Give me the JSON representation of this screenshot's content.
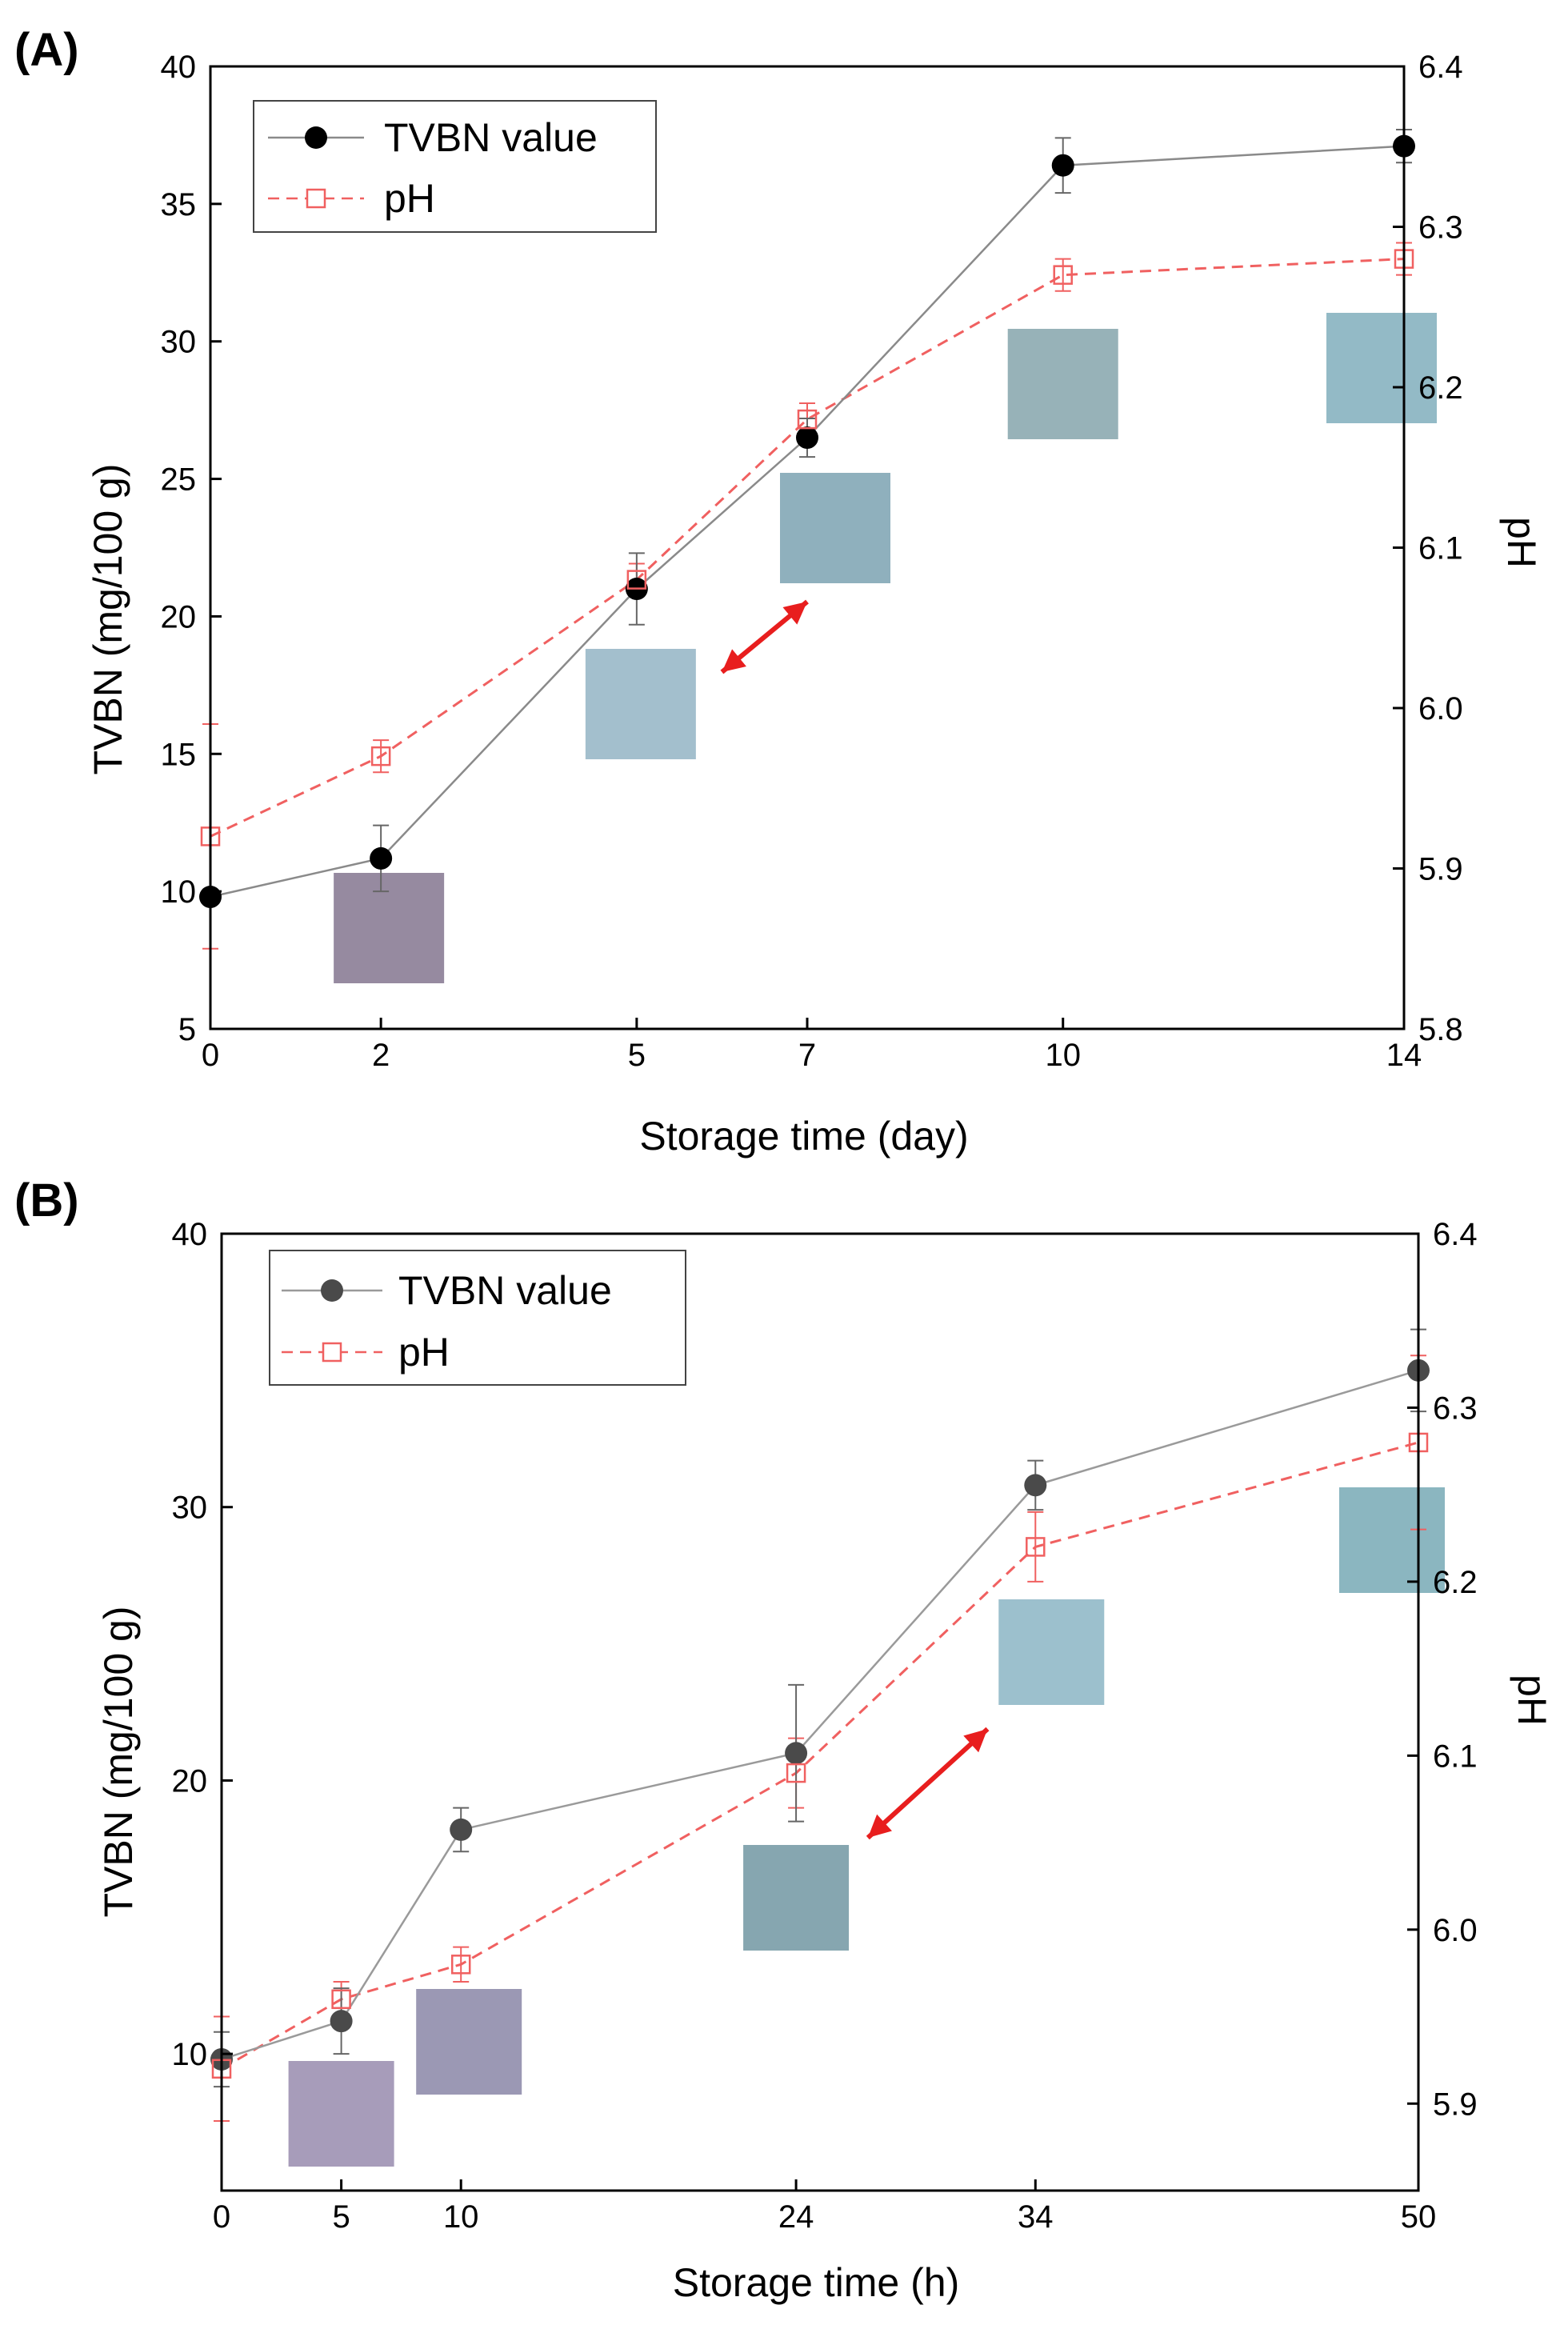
{
  "colors": {
    "tvbn_line_A": "#8a8a8a",
    "tvbn_marker_A": "#000000",
    "tvbn_line_B": "#9a9a9a",
    "tvbn_marker_B": "#4a4a4a",
    "ph": "#f06060",
    "arrow": "#e81e1e",
    "axis": "#000000"
  },
  "chart_data": [
    {
      "panel_label": "(A)",
      "type": "line",
      "title": "",
      "xlabel": "Storage time (day)",
      "ylabel": "TVBN (mg/100 g)",
      "y2label": "pH",
      "xlim": [
        0,
        14
      ],
      "ylim": [
        5,
        40
      ],
      "y2lim": [
        5.8,
        6.4
      ],
      "x_ticks": [
        0,
        2,
        5,
        7,
        10,
        14
      ],
      "x_tick_labels": [
        "0",
        "2",
        "5",
        "7",
        "10",
        "14"
      ],
      "y_ticks": [
        5,
        10,
        15,
        20,
        25,
        30,
        35,
        40
      ],
      "y_tick_labels": [
        "5",
        "10",
        "15",
        "20",
        "25",
        "30",
        "35",
        "40"
      ],
      "y2_ticks": [
        5.8,
        5.9,
        6.0,
        6.1,
        6.2,
        6.3,
        6.4
      ],
      "y2_tick_labels": [
        "5.8",
        "5.9",
        "6.0",
        "6.1",
        "6.2",
        "6.3",
        "6.4"
      ],
      "legend_position": "top-left",
      "series": [
        {
          "name": "TVBN value",
          "axis": "left",
          "style": "solid",
          "marker": "filled-circle",
          "x": [
            0,
            2,
            5,
            7,
            10,
            14
          ],
          "values": [
            9.8,
            11.2,
            21.0,
            26.5,
            36.4,
            37.1
          ],
          "errors": [
            0.2,
            1.2,
            1.3,
            0.7,
            1.0,
            0.6
          ]
        },
        {
          "name": "pH",
          "axis": "right",
          "style": "dashed",
          "marker": "open-square",
          "x": [
            0,
            2,
            5,
            7,
            10,
            14
          ],
          "values": [
            5.92,
            5.97,
            6.08,
            6.18,
            6.27,
            6.28
          ],
          "errors": [
            0.07,
            0.01,
            0.01,
            0.01,
            0.01,
            0.01
          ]
        }
      ],
      "swatches": [
        {
          "x": 2,
          "color": "#968aa0"
        },
        {
          "x": 5,
          "color": "#a3bfcd"
        },
        {
          "x": 7,
          "color": "#8fb0bd"
        },
        {
          "x": 10,
          "color": "#97b2b8"
        },
        {
          "x": 14,
          "color": "#93bac6"
        }
      ],
      "arrow": {
        "from_x": 6,
        "to_x": 7
      }
    },
    {
      "panel_label": "(B)",
      "type": "line",
      "title": "",
      "xlabel": "Storage time (h)",
      "ylabel": "TVBN (mg/100 g)",
      "y2label": "pH",
      "xlim": [
        0,
        50
      ],
      "ylim": [
        5,
        40
      ],
      "y2lim": [
        5.85,
        6.4
      ],
      "x_ticks": [
        0,
        5,
        10,
        24,
        34,
        50
      ],
      "x_tick_labels": [
        "0",
        "5",
        "10",
        "24",
        "34",
        "50"
      ],
      "y_ticks": [
        10,
        20,
        30,
        40
      ],
      "y_tick_labels": [
        "10",
        "20",
        "30",
        "40"
      ],
      "y2_ticks": [
        5.9,
        6.0,
        6.1,
        6.2,
        6.3,
        6.4
      ],
      "y2_tick_labels": [
        "5.9",
        "6.0",
        "6.1",
        "6.2",
        "6.3",
        "6.4"
      ],
      "legend_position": "top-left",
      "series": [
        {
          "name": "TVBN value",
          "axis": "left",
          "style": "solid",
          "marker": "filled-circle",
          "x": [
            0,
            5,
            10,
            24,
            34,
            50
          ],
          "values": [
            9.8,
            11.2,
            18.2,
            21.0,
            30.8,
            35.0
          ],
          "errors": [
            1.0,
            1.2,
            0.8,
            2.5,
            0.9,
            1.5
          ]
        },
        {
          "name": "pH",
          "axis": "right",
          "style": "dashed",
          "marker": "open-square",
          "x": [
            0,
            5,
            10,
            24,
            34,
            50
          ],
          "values": [
            5.92,
            5.96,
            5.98,
            6.09,
            6.22,
            6.28
          ],
          "errors": [
            0.03,
            0.01,
            0.01,
            0.02,
            0.02,
            0.05
          ]
        }
      ],
      "swatches": [
        {
          "x": 5,
          "color": "#a79cba"
        },
        {
          "x": 10,
          "color": "#9b98b4"
        },
        {
          "x": 24,
          "color": "#86a6b0"
        },
        {
          "x": 34,
          "color": "#9cc0cd"
        },
        {
          "x": 50,
          "color": "#8bb6c0"
        }
      ],
      "arrow": {
        "from_x": 27,
        "to_x": 32
      }
    }
  ]
}
